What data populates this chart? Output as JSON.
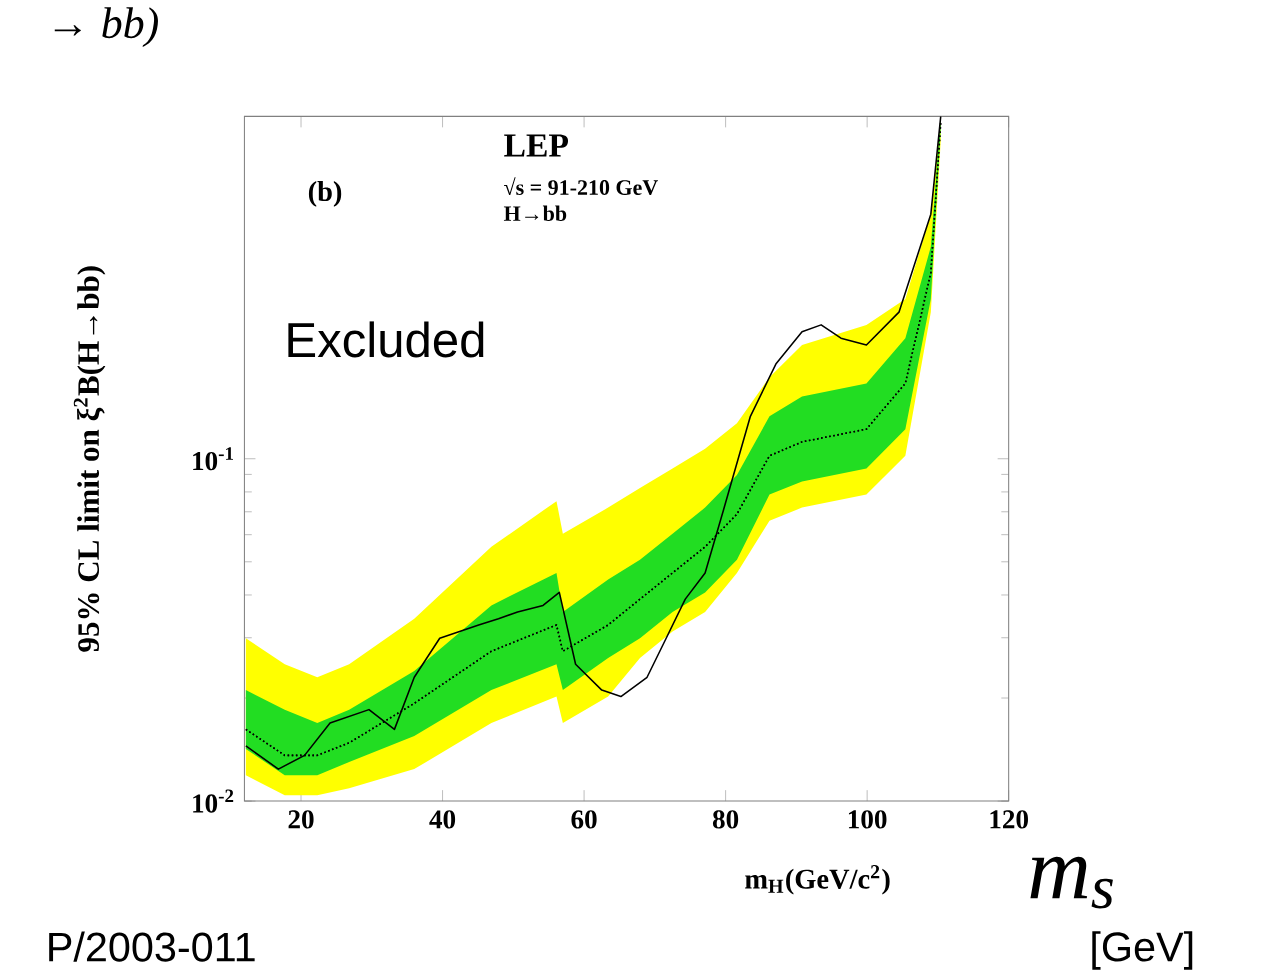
{
  "chart_data": {
    "type": "line",
    "xlabel": "m$_{H}$(GeV/c$^{2}$)",
    "ylabel": "95% CL limit on ξ$^{2}$B(H→bb)",
    "xlim": [
      12,
      120
    ],
    "ylim": [
      0.01,
      1
    ],
    "log": "y",
    "grid": false,
    "marker": "none",
    "xticks": [
      20,
      40,
      60,
      80,
      100,
      120
    ],
    "yticks": [
      {
        "value": 0.01,
        "label": "10$^{-2}$"
      },
      {
        "value": 0.1,
        "label": "10$^{-1}$"
      }
    ],
    "series": [
      {
        "color": "#000000",
        "line_style": "dotted",
        "x": [
          12.2,
          17.7,
          22.3,
          26.8,
          36.0,
          46.9,
          56.1,
          57.0,
          63.4,
          67.9,
          72.5,
          77.1,
          81.6,
          86.2,
          90.8,
          99.9,
          105.4,
          109.0,
          110.4
        ],
        "values": [
          0.0162,
          0.0136,
          0.0136,
          0.0148,
          0.0193,
          0.0274,
          0.0327,
          0.0274,
          0.0327,
          0.0389,
          0.0464,
          0.0553,
          0.0689,
          0.102,
          0.112,
          0.122,
          0.166,
          0.349,
          0.96
        ],
        "lower": [
          0.0119,
          0.0104,
          0.0104,
          0.0109,
          0.0124,
          0.0169,
          0.0202,
          0.0169,
          0.0202,
          0.0262,
          0.0313,
          0.0357,
          0.0464,
          0.0659,
          0.072,
          0.0786,
          0.102,
          0.268,
          0.85
        ],
        "upper": [
          0.0299,
          0.0251,
          0.023,
          0.0251,
          0.0341,
          0.0553,
          0.0752,
          0.0604,
          0.072,
          0.0821,
          0.0936,
          0.107,
          0.127,
          0.173,
          0.215,
          0.246,
          0.293,
          0.518,
          1.0
        ]
      },
      {
        "color": "#000000",
        "line_style": "dotted",
        "x": [
          12.2,
          17.7,
          22.3,
          26.8,
          36.0,
          46.9,
          56.1,
          57.0,
          63.4,
          67.9,
          72.5,
          77.1,
          81.6,
          86.2,
          90.8,
          99.9,
          105.4,
          109.0,
          110.4
        ],
        "values": [
          0.0162,
          0.0136,
          0.0136,
          0.0148,
          0.0193,
          0.0274,
          0.0327,
          0.0274,
          0.0327,
          0.0389,
          0.0464,
          0.0553,
          0.0689,
          0.102,
          0.112,
          0.122,
          0.166,
          0.349,
          0.96
        ],
        "lower": [
          0.0142,
          0.0119,
          0.0119,
          0.013,
          0.0155,
          0.0211,
          0.0251,
          0.0211,
          0.0262,
          0.0299,
          0.0357,
          0.0407,
          0.0507,
          0.0786,
          0.0858,
          0.0936,
          0.122,
          0.293,
          0.92
        ],
        "upper": [
          0.0211,
          0.0185,
          0.0169,
          0.0185,
          0.024,
          0.0373,
          0.0464,
          0.0357,
          0.0444,
          0.0507,
          0.0604,
          0.072,
          0.0896,
          0.133,
          0.152,
          0.166,
          0.225,
          0.416,
          1.0
        ]
      },
      {
        "color": "#000000",
        "line_style": "solid",
        "x": [
          12.2,
          16.8,
          20.5,
          24.1,
          29.6,
          33.2,
          36.0,
          39.6,
          45.1,
          47.9,
          50.6,
          54.2,
          56.5,
          58.8,
          62.5,
          65.2,
          68.9,
          71.6,
          74.3,
          77.1,
          79.8,
          83.5,
          87.1,
          90.8,
          93.5,
          96.3,
          99.9,
          104.5,
          109.0,
          110.4
        ],
        "values": [
          0.0145,
          0.0124,
          0.0136,
          0.0169,
          0.0185,
          0.0162,
          0.023,
          0.0299,
          0.0327,
          0.0341,
          0.0357,
          0.0373,
          0.0407,
          0.0251,
          0.0211,
          0.0202,
          0.023,
          0.0299,
          0.0389,
          0.0464,
          0.072,
          0.133,
          0.189,
          0.235,
          0.246,
          0.225,
          0.215,
          0.268,
          0.518,
          1.0
        ]
      }
    ],
    "annotations": [
      "(b)",
      "LEP",
      "√s = 91-210 GeV",
      "H→bb",
      "Excluded",
      "→ bb)",
      "P/2003-011",
      "m$_{s}$",
      "[GeV]"
    ]
  }
}
